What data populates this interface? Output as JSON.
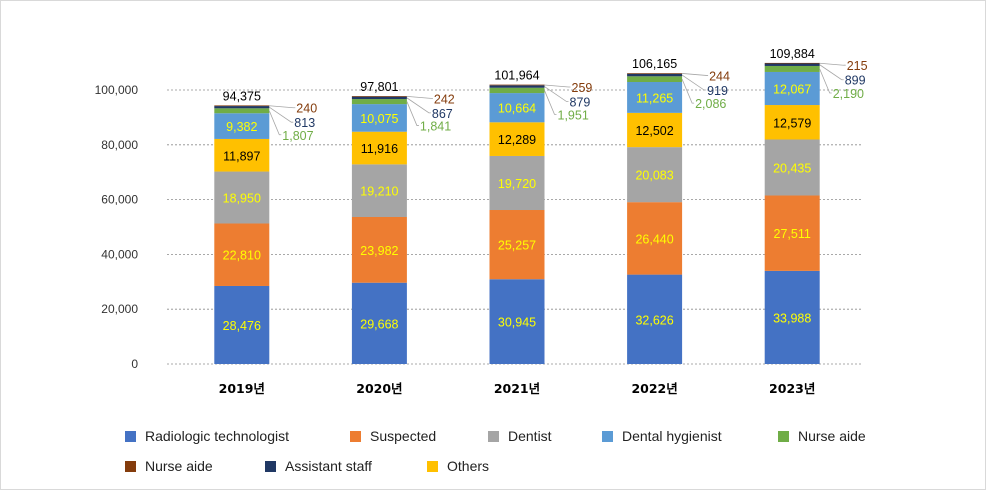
{
  "chart_data": {
    "type": "bar",
    "stacked": true,
    "title": "",
    "xlabel": "",
    "ylabel": "",
    "ylim": [
      0,
      100000
    ],
    "y_ticks": [
      "0",
      "20,000",
      "40,000",
      "60,000",
      "80,000",
      "100,000"
    ],
    "y_tick_values": [
      0,
      20000,
      40000,
      60000,
      80000,
      100000
    ],
    "grid": true,
    "legend_position": "bottom",
    "categories": [
      "2019년",
      "2020년",
      "2021년",
      "2022년",
      "2023년"
    ],
    "totals": [
      94375,
      97801,
      101964,
      106165,
      109884
    ],
    "total_labels": [
      "94,375",
      "97,801",
      "101,964",
      "106,165",
      "109,884"
    ],
    "series": [
      {
        "name": "Radiologic technologist",
        "color": "#4472c4",
        "values": [
          28476,
          29668,
          30945,
          32626,
          33988
        ],
        "labels": [
          "28,476",
          "29,668",
          "30,945",
          "32,626",
          "33,988"
        ],
        "label_color": "#ffff00"
      },
      {
        "name": "Suspected",
        "color": "#ed7d31",
        "values": [
          22810,
          23982,
          25257,
          26440,
          27511
        ],
        "labels": [
          "22,810",
          "23,982",
          "25,257",
          "26,440",
          "27,511"
        ],
        "label_color": "#ffff00"
      },
      {
        "name": "Dentist",
        "color": "#a5a5a5",
        "values": [
          18950,
          19210,
          19720,
          20083,
          20435
        ],
        "labels": [
          "18,950",
          "19,210",
          "19,720",
          "20,083",
          "20,435"
        ],
        "label_color": "#ffff00"
      },
      {
        "name": "Others",
        "color": "#ffc000",
        "values": [
          11897,
          11916,
          12289,
          12502,
          12579
        ],
        "labels": [
          "11,897",
          "11,916",
          "12,289",
          "12,502",
          "12,579"
        ],
        "label_color": "#000000"
      },
      {
        "name": "Dental hygienist",
        "color": "#5b9bd5",
        "values": [
          9382,
          10075,
          10664,
          11265,
          12067
        ],
        "labels": [
          "9,382",
          "10,075",
          "10,664",
          "11,265",
          "12,067"
        ],
        "label_color": "#ffff00"
      },
      {
        "name": "Nurse aide",
        "color": "#70ad47",
        "values": [
          1807,
          1841,
          1951,
          2086,
          2190
        ],
        "labels": [
          "1,807",
          "1,841",
          "1,951",
          "2,086",
          "2,190"
        ],
        "label_color": "#70ad47",
        "callout": true
      },
      {
        "name": "Assistant staff",
        "color": "#203864",
        "values": [
          813,
          867,
          879,
          919,
          899
        ],
        "labels": [
          "813",
          "867",
          "879",
          "919",
          "899"
        ],
        "label_color": "#203864",
        "callout": true
      },
      {
        "name": "Nurse aide",
        "color": "#843c0c",
        "values": [
          240,
          242,
          259,
          244,
          215
        ],
        "labels": [
          "240",
          "242",
          "259",
          "244",
          "215"
        ],
        "label_color": "#843c0c",
        "callout": true
      }
    ]
  },
  "legend": {
    "items": [
      {
        "label": "Radiologic technologist",
        "color": "#4472c4"
      },
      {
        "label": "Suspected",
        "color": "#ed7d31"
      },
      {
        "label": "Dentist",
        "color": "#a5a5a5"
      },
      {
        "label": "Dental hygienist",
        "color": "#5b9bd5"
      },
      {
        "label": "Nurse aide",
        "color": "#70ad47"
      },
      {
        "label": "Nurse aide",
        "color": "#843c0c"
      },
      {
        "label": "Assistant staff",
        "color": "#203864"
      },
      {
        "label": "Others",
        "color": "#ffc000"
      }
    ]
  }
}
